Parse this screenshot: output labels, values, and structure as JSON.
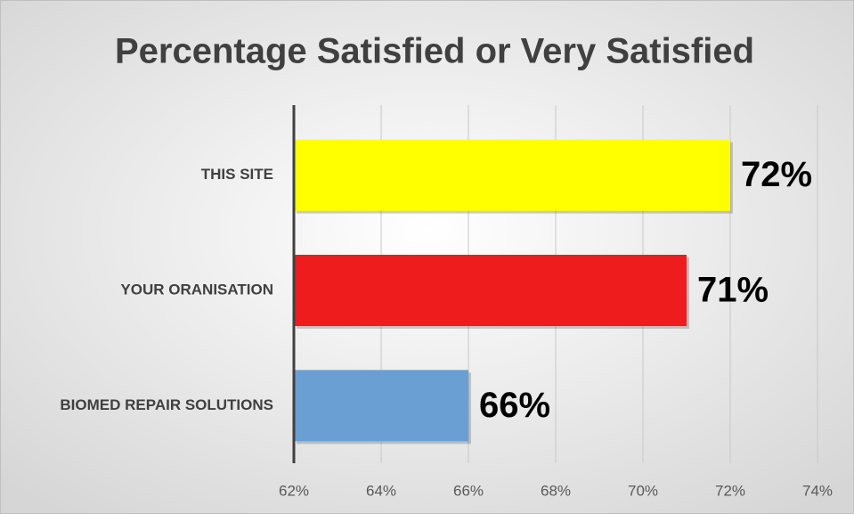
{
  "chart_data": {
    "type": "bar",
    "orientation": "horizontal",
    "title": "Percentage Satisfied or Very Satisfied",
    "categories": [
      "THIS SITE",
      "YOUR ORANISATION",
      "BIOMED REPAIR SOLUTIONS"
    ],
    "values": [
      72,
      71,
      66
    ],
    "value_labels": [
      "72%",
      "71%",
      "66%"
    ],
    "colors": [
      "#ffff00",
      "#ee1c1c",
      "#6a9fd4"
    ],
    "xlim": [
      62,
      74
    ],
    "xticks": [
      {
        "value": 62,
        "label": "62%"
      },
      {
        "value": 64,
        "label": "64%"
      },
      {
        "value": 66,
        "label": "66%"
      },
      {
        "value": 68,
        "label": "68%"
      },
      {
        "value": 70,
        "label": "70%"
      },
      {
        "value": 72,
        "label": "72%"
      },
      {
        "value": 74,
        "label": "74%"
      }
    ],
    "grid": true
  }
}
